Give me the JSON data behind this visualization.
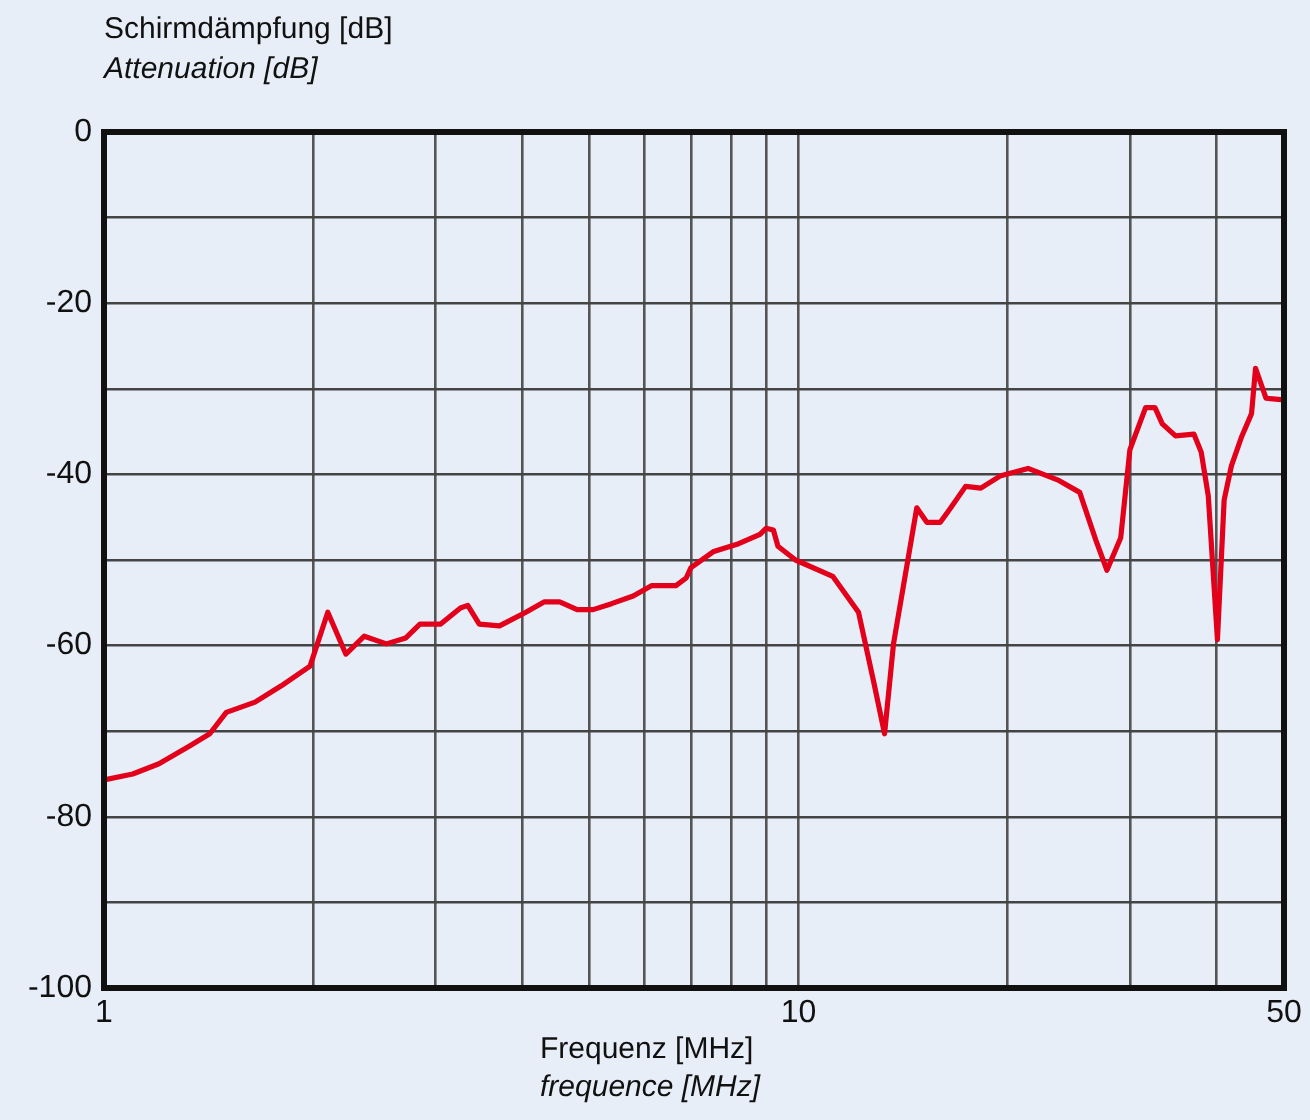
{
  "chart_data": {
    "type": "line",
    "ylabel": "Schirmdämpfung [dB]\nAttenuation [dB]",
    "xlabel": "Frequenz [MHz]\nfrequence [MHz]",
    "log": "x",
    "grid": true,
    "legend": false,
    "marker": "none",
    "line_style": "solid",
    "xlim": [
      1,
      50
    ],
    "xticks": [
      1,
      {
        "value": 2,
        "label": null
      },
      {
        "value": 3,
        "label": null
      },
      {
        "value": 4,
        "label": null
      },
      {
        "value": 5,
        "label": null
      },
      {
        "value": 6,
        "label": null
      },
      {
        "value": 7,
        "label": null
      },
      {
        "value": 8,
        "label": null
      },
      {
        "value": 9,
        "label": null
      },
      10,
      {
        "value": 20,
        "label": null
      },
      {
        "value": 30,
        "label": null
      },
      {
        "value": 40,
        "label": null
      },
      50
    ],
    "ylim": [
      -100,
      0
    ],
    "yticks": [
      0,
      {
        "value": -10,
        "label": null
      },
      -20,
      {
        "value": -30,
        "label": null
      },
      -40,
      {
        "value": -50,
        "label": null
      },
      -60,
      {
        "value": -70,
        "label": null
      },
      -80,
      {
        "value": -90,
        "label": null
      },
      -100
    ],
    "x": [
      1,
      1.1,
      1.2,
      1.33,
      1.42,
      1.5,
      1.65,
      1.8,
      1.98,
      2.1,
      2.23,
      2.37,
      2.55,
      2.72,
      2.85,
      3.05,
      3.26,
      3.34,
      3.47,
      3.71,
      4.05,
      4.3,
      4.53,
      4.8,
      5.06,
      5.38,
      5.78,
      6.14,
      6.66,
      6.89,
      7.0,
      7.55,
      8.2,
      8.8,
      8.98,
      9.2,
      9.34,
      9.9,
      11.2,
      12.2,
      12.85,
      13.3,
      13.7,
      14.8,
      15.3,
      16,
      16.4,
      17.4,
      18.3,
      19.5,
      21.4,
      23.7,
      25.4,
      26.8,
      27.8,
      29.1,
      30,
      31.6,
      32.6,
      33.4,
      34.9,
      37.1,
      38,
      38.9,
      40.1,
      41,
      42,
      43.4,
      44.9,
      45.5,
      47.1,
      50
    ],
    "series": [
      {
        "color": "#e2001a",
        "values": [
          -75.7,
          -75,
          -73.8,
          -71.7,
          -70.3,
          -67.8,
          -66.6,
          -64.7,
          -62.4,
          -56.1,
          -61,
          -58.9,
          -59.8,
          -59.1,
          -57.5,
          -57.5,
          -55.6,
          -55.3,
          -57.5,
          -57.7,
          -56.1,
          -54.9,
          -54.9,
          -55.8,
          -55.8,
          -55.1,
          -54.2,
          -53,
          -53,
          -52.1,
          -50.9,
          -49,
          -48.1,
          -47,
          -46.3,
          -46.5,
          -48.4,
          -50,
          -51.9,
          -56.1,
          -64.5,
          -70.3,
          -59.8,
          -43.9,
          -45.6,
          -45.6,
          -44.4,
          -41.4,
          -41.6,
          -40.2,
          -39.3,
          -40.7,
          -42.1,
          -47.7,
          -51.2,
          -47.4,
          -37.1,
          -32.2,
          -32.2,
          -34.1,
          -35.5,
          -35.3,
          -37.4,
          -42.5,
          -59.3,
          -43,
          -39,
          -35.7,
          -32.9,
          -27.6,
          -31.1,
          -31.3
        ]
      }
    ]
  }
}
